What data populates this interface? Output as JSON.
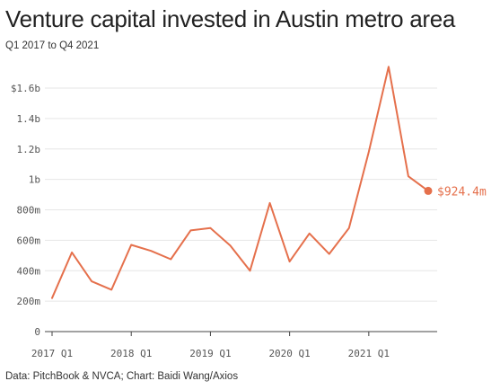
{
  "title": "Venture capital invested in Austin metro area",
  "subtitle": "Q1 2017 to Q4 2021",
  "source": "Data: PitchBook & NVCA; Chart: Baidi Wang/Axios",
  "colors": {
    "line": "#e5704c",
    "grid": "#e6e6e6",
    "axis": "#444444",
    "text": "#555555"
  },
  "chart_data": {
    "type": "line",
    "title": "Venture capital invested in Austin metro area",
    "subtitle": "Q1 2017 to Q4 2021",
    "x": [
      "2017 Q1",
      "2017 Q2",
      "2017 Q3",
      "2017 Q4",
      "2018 Q1",
      "2018 Q2",
      "2018 Q3",
      "2018 Q4",
      "2019 Q1",
      "2019 Q2",
      "2019 Q3",
      "2019 Q4",
      "2020 Q1",
      "2020 Q2",
      "2020 Q3",
      "2020 Q4",
      "2021 Q1",
      "2021 Q2",
      "2021 Q3",
      "2021 Q4"
    ],
    "series": [
      {
        "values": [
          220,
          520,
          330,
          275,
          570,
          530,
          475,
          665,
          680,
          565,
          400,
          845,
          460,
          645,
          510,
          680,
          1180,
          1740,
          1020,
          924.4
        ]
      }
    ],
    "units": "millions USD",
    "xtick_labels": [
      "2017 Q1",
      "2018 Q1",
      "2019 Q1",
      "2020 Q1",
      "2021 Q1"
    ],
    "xtick_indices": [
      0,
      4,
      8,
      12,
      16
    ],
    "ytick_values": [
      0,
      200,
      400,
      600,
      800,
      1000,
      1200,
      1400,
      1600
    ],
    "ytick_labels": [
      "0",
      "200m",
      "400m",
      "600m",
      "800m",
      "1b",
      "1.2b",
      "1.4b",
      "$1.6b"
    ],
    "ylim": [
      0,
      1600
    ],
    "end_label": "$924.4m",
    "grid": true,
    "legend": "none"
  }
}
